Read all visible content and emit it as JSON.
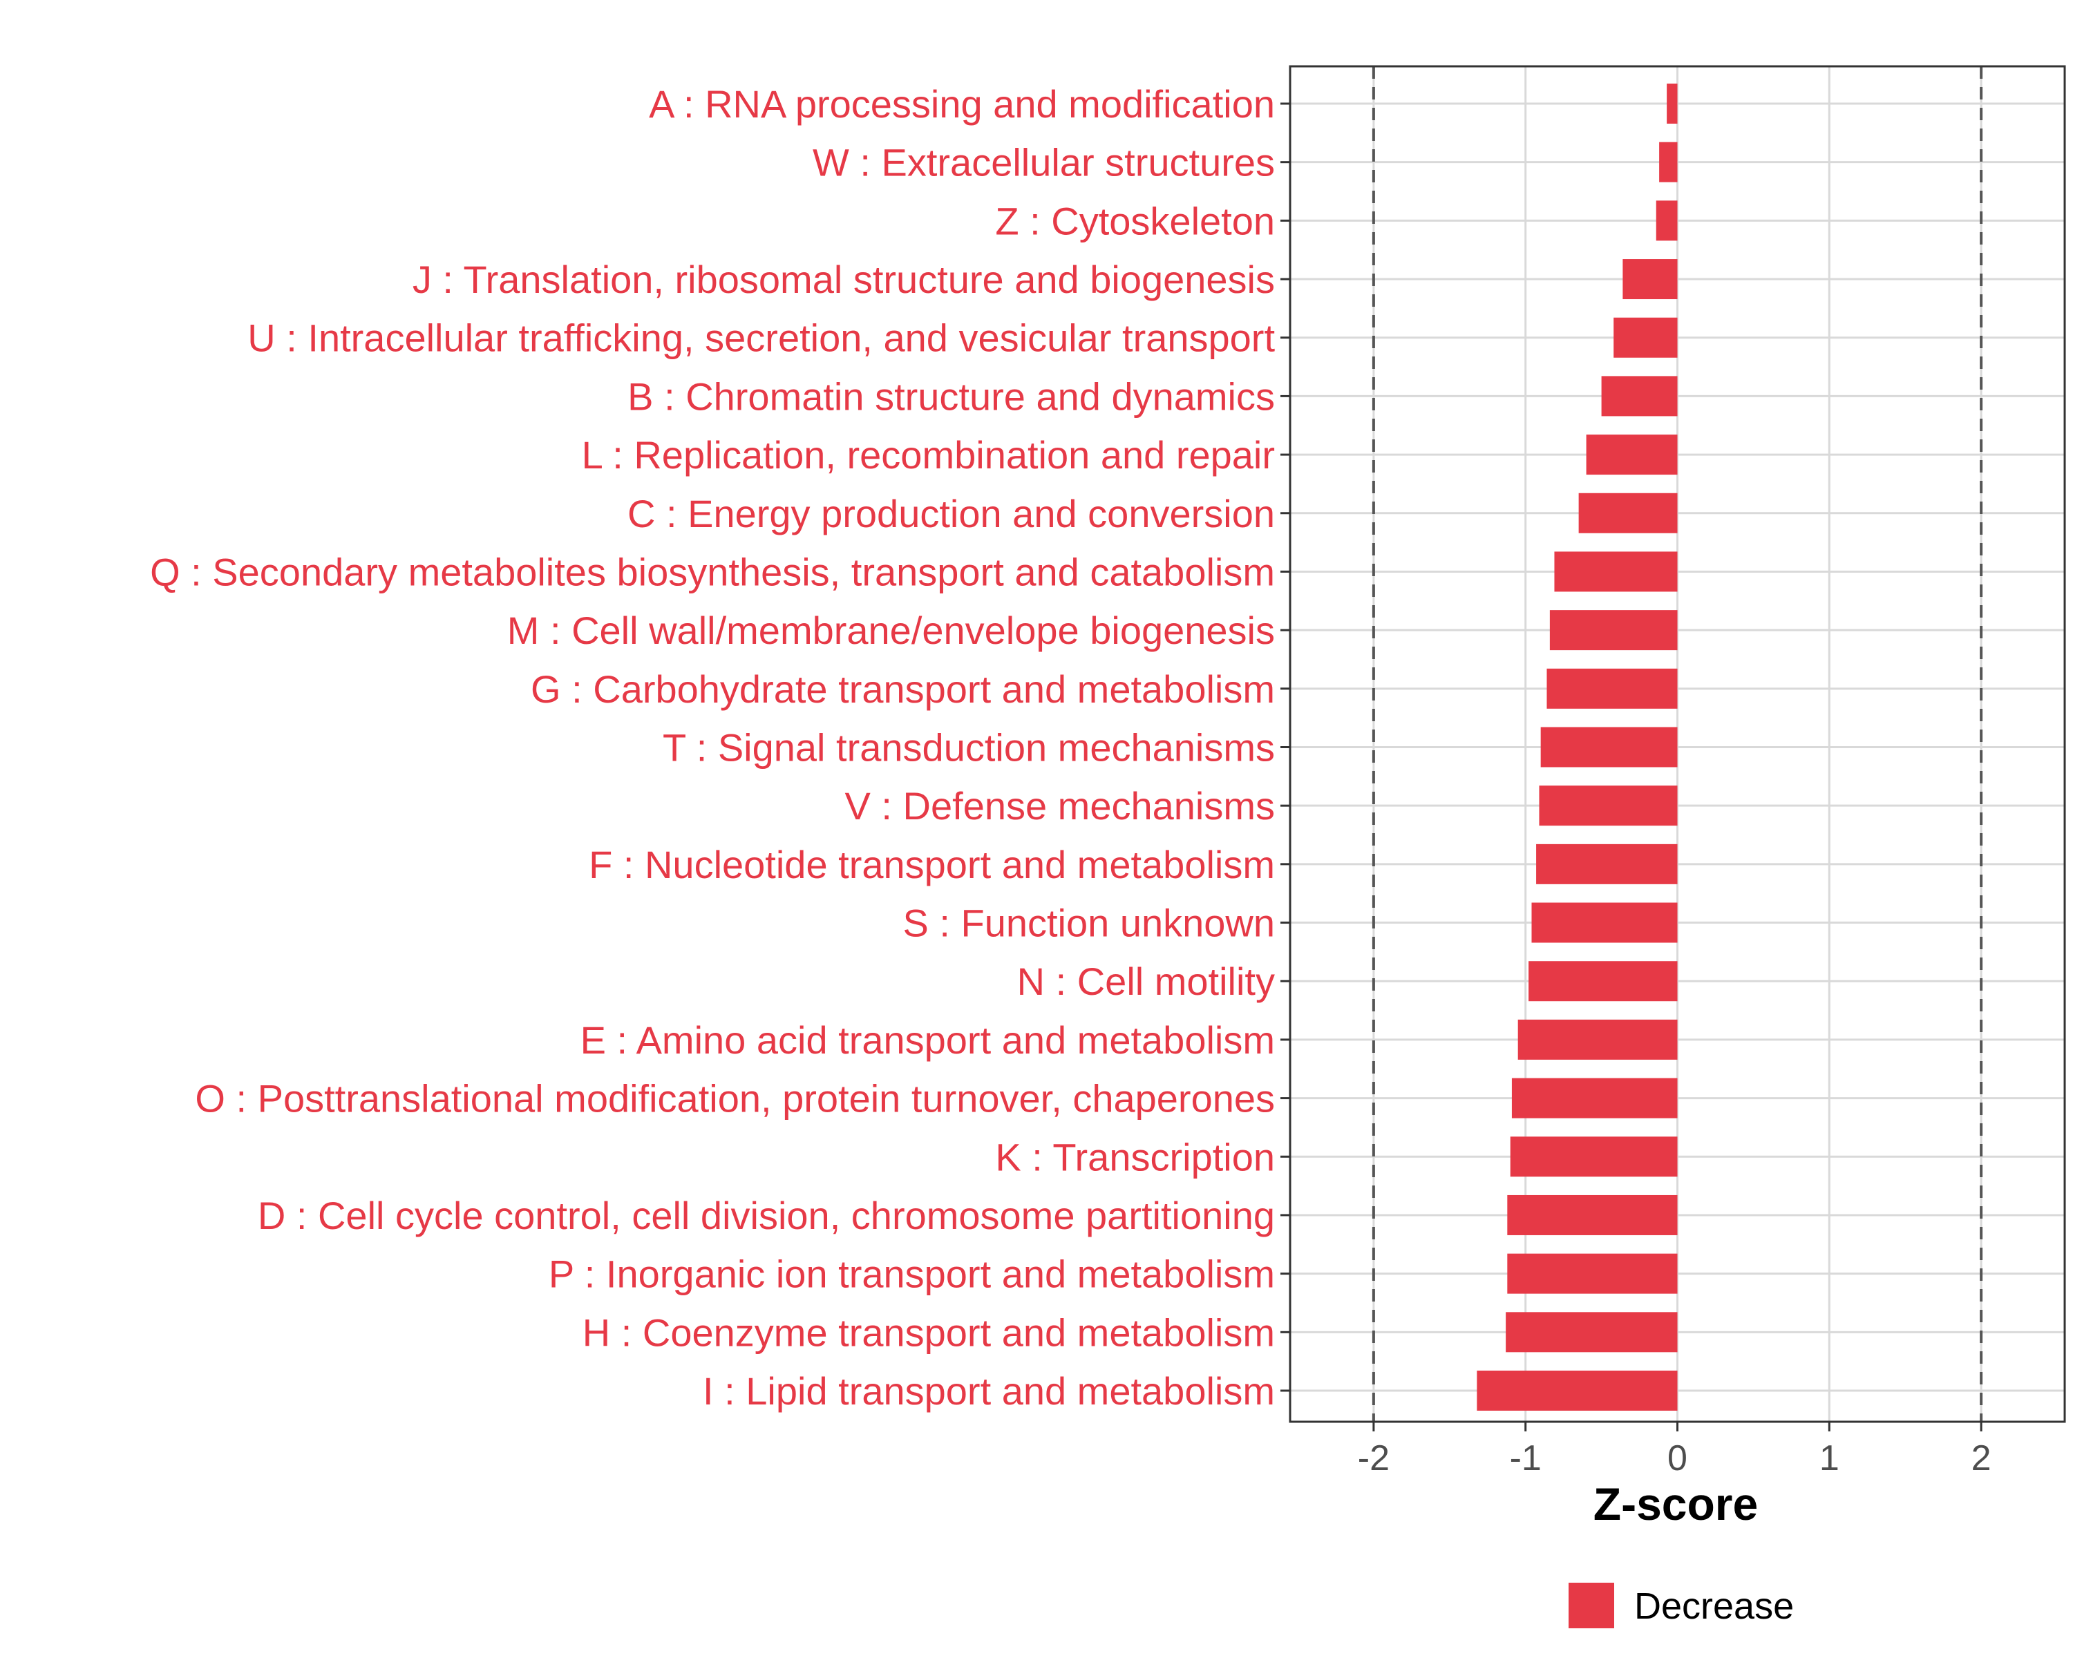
{
  "chart_data": {
    "type": "bar",
    "orientation": "horizontal",
    "categories": [
      "A : RNA processing and modification",
      "W : Extracellular structures",
      "Z : Cytoskeleton",
      "J : Translation, ribosomal structure and biogenesis",
      "U : Intracellular trafficking, secretion, and vesicular transport",
      "B : Chromatin structure and dynamics",
      "L : Replication, recombination and repair",
      "C : Energy production and conversion",
      "Q : Secondary metabolites biosynthesis, transport and catabolism",
      "M : Cell wall/membrane/envelope biogenesis",
      "G : Carbohydrate transport and metabolism",
      "T : Signal transduction mechanisms",
      "V : Defense mechanisms",
      "F : Nucleotide transport and metabolism",
      "S : Function unknown",
      "N : Cell motility",
      "E : Amino acid transport and metabolism",
      "O : Posttranslational modification, protein turnover, chaperones",
      "K : Transcription",
      "D : Cell cycle control, cell division, chromosome partitioning",
      "P : Inorganic ion transport and metabolism",
      "H : Coenzyme transport and metabolism",
      "I : Lipid transport and metabolism"
    ],
    "values": [
      -0.07,
      -0.12,
      -0.14,
      -0.36,
      -0.42,
      -0.5,
      -0.6,
      -0.65,
      -0.81,
      -0.84,
      -0.86,
      -0.9,
      -0.91,
      -0.93,
      -0.96,
      -0.98,
      -1.05,
      -1.09,
      -1.1,
      -1.12,
      -1.12,
      -1.13,
      -1.32
    ],
    "xlabel": "Z-score",
    "ylabel": "",
    "xlim": [
      -2.55,
      2.55
    ],
    "xticks": [
      -2,
      -1,
      0,
      1,
      2
    ],
    "xtick_labels": [
      "-2",
      "-1",
      "0",
      "1",
      "2"
    ],
    "reference_lines": [
      -2,
      2
    ],
    "grid": true,
    "legend": {
      "position": "bottom",
      "entries": [
        {
          "label": "Decrease",
          "color": "#e63946"
        }
      ]
    },
    "colors": {
      "bar": "#e63946",
      "label": "#e63946",
      "reference_line": "#555555",
      "grid": "#d9d9d9",
      "axis": "#333333"
    }
  }
}
